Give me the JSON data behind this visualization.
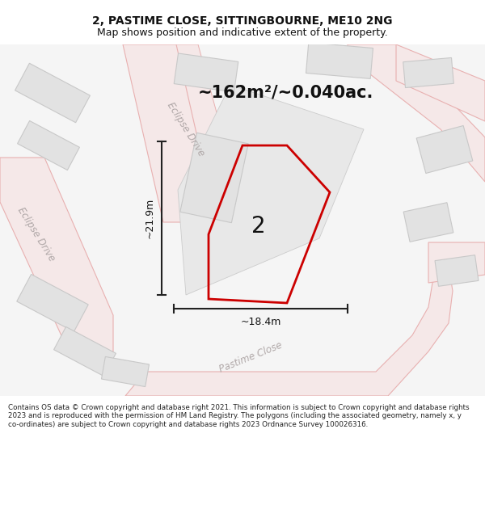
{
  "title": "2, PASTIME CLOSE, SITTINGBOURNE, ME10 2NG",
  "subtitle": "Map shows position and indicative extent of the property.",
  "area_text": "~162m²/~0.040ac.",
  "dim_width": "~18.4m",
  "dim_height": "~21.9m",
  "plot_label": "2",
  "footer": "Contains OS data © Crown copyright and database right 2021. This information is subject to Crown copyright and database rights 2023 and is reproduced with the permission of HM Land Registry. The polygons (including the associated geometry, namely x, y co-ordinates) are subject to Crown copyright and database rights 2023 Ordnance Survey 100026316.",
  "map_bg": "#f5f5f5",
  "road_fill": "#f5e8e8",
  "road_edge": "#e8b0b0",
  "building_fill": "#e2e2e2",
  "building_edge": "#c8c8c8",
  "plot_outline_fill": "#ebebeb",
  "plot_outline_edge": "#c8c8c8",
  "plot_color": "#cc0000",
  "title_color": "#111111",
  "footer_color": "#222222",
  "road_label_color": "#b0a8a8",
  "dim_color": "#222222"
}
